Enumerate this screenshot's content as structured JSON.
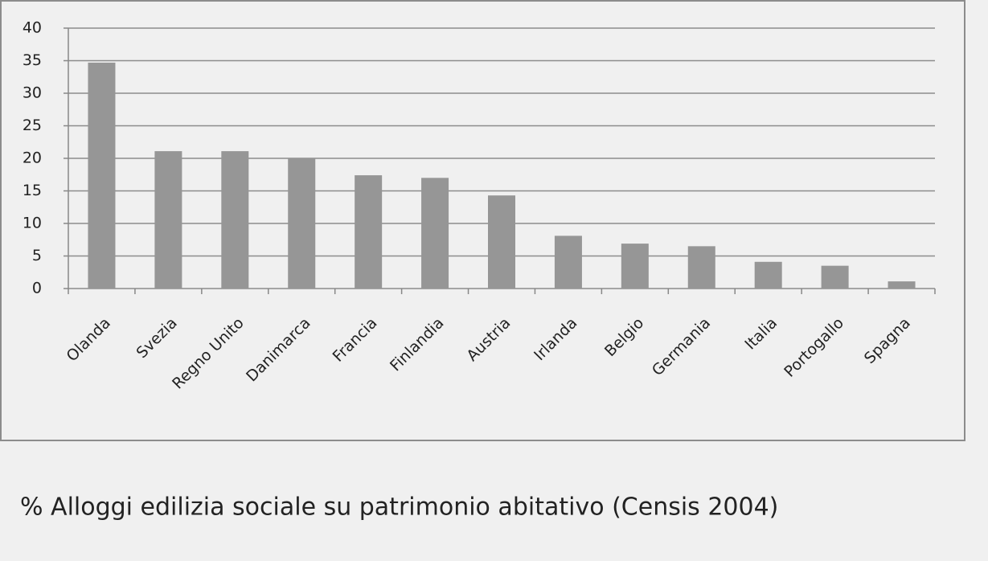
{
  "chart_data": {
    "type": "bar",
    "title": "% Alloggi edilizia sociale su patrimonio abitativo (Censis 2004)",
    "categories": [
      "Olanda",
      "Svezia",
      "Regno Unito",
      "Danimarca",
      "Francia",
      "Finlandia",
      "Austria",
      "Irlanda",
      "Belgio",
      "Germania",
      "Italia",
      "Portogallo",
      "Spagna"
    ],
    "values": [
      34.7,
      21.1,
      21.1,
      20,
      17.4,
      17,
      14.3,
      8.1,
      6.9,
      6.5,
      4.1,
      3.5,
      1.1
    ],
    "color": "#969696",
    "ylim": [
      0,
      40
    ],
    "yticks": [
      0,
      5,
      10,
      15,
      20,
      25,
      30,
      35,
      40
    ],
    "grid": true
  }
}
